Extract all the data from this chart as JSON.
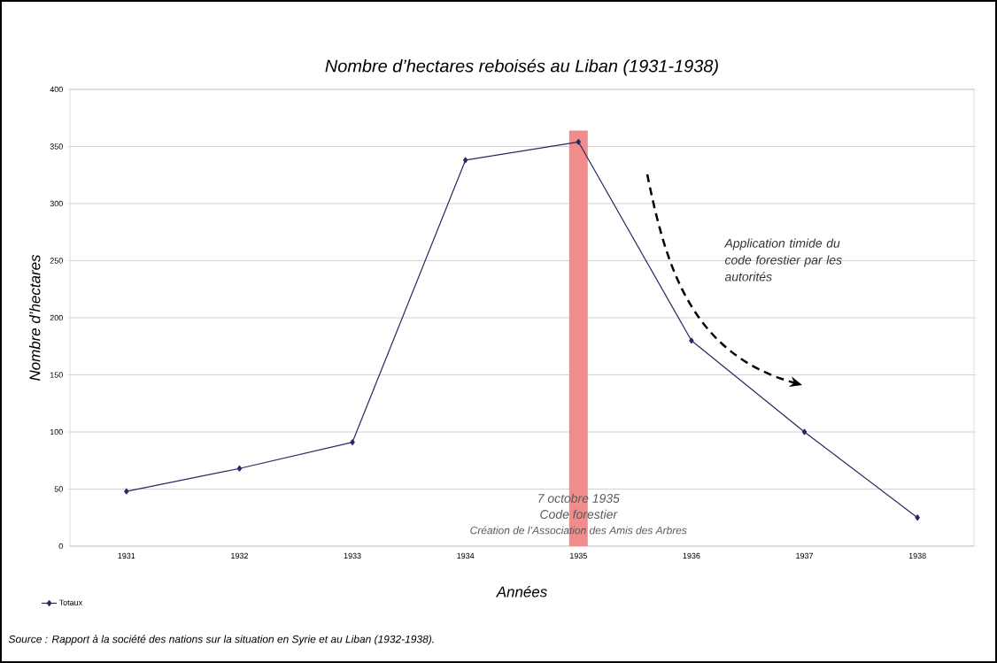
{
  "chart_data": {
    "type": "line",
    "title": "Nombre d’hectares reboisés au Liban (1931-1938)",
    "xlabel": "Années",
    "ylabel": "Nombre d’hectares",
    "categories": [
      "1931",
      "1932",
      "1933",
      "1934",
      "1935",
      "1936",
      "1937",
      "1938"
    ],
    "series": [
      {
        "name": "Totaux",
        "color": "#2b2860",
        "values": [
          48,
          68,
          91,
          338,
          354,
          180,
          100,
          25
        ]
      }
    ],
    "ylim": [
      0,
      400
    ],
    "yticks": [
      0,
      50,
      100,
      150,
      200,
      250,
      300,
      350,
      400
    ],
    "grid": "y",
    "legend": "bottom left",
    "marker": "diamond",
    "line_style": "solid",
    "ref_lines": [
      {
        "axis": "x",
        "value": "1935",
        "color": "#f08c8c"
      }
    ],
    "annotations": [
      {
        "text": "7 octobre 1935",
        "x": "1935",
        "y": 42
      },
      {
        "text": "Code forestier",
        "x": "1935",
        "y": 28
      },
      {
        "text": "Création de l’Association des Amis des Arbres",
        "x": "1935",
        "y": 14
      },
      "Application timide du code forestier par les autorités",
      "Source : Rapport à la société des nations sur la situation en Syrie et au Liban (1932-1938)."
    ]
  }
}
